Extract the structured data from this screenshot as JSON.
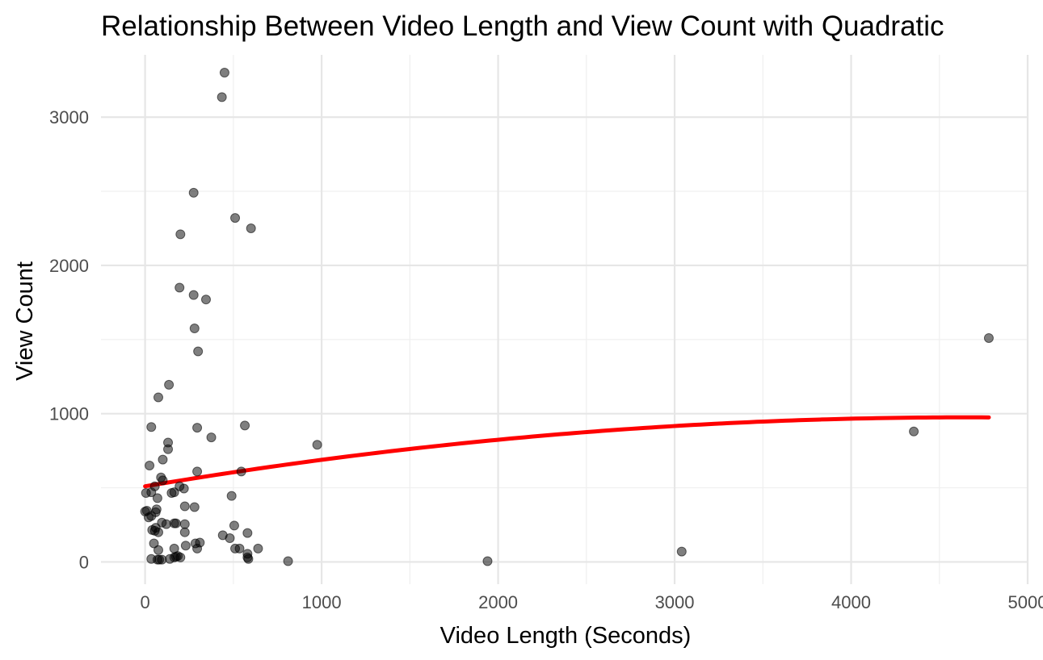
{
  "chart_data": {
    "type": "scatter",
    "title": "Relationship Between Video Length and View Count with Quadratic",
    "xlabel": "Video Length (Seconds)",
    "ylabel": "View Count",
    "xlim": [
      -250,
      5000
    ],
    "ylim": [
      -150,
      3420
    ],
    "x_ticks": [
      0,
      1000,
      2000,
      3000,
      4000,
      5000
    ],
    "y_ticks": [
      0,
      1000,
      2000,
      3000
    ],
    "grid": true,
    "legend": "none",
    "point_color": "#000000",
    "fit_color": "#ff0000",
    "series": [
      {
        "points": [
          [
            450,
            3300
          ],
          [
            435,
            3135
          ],
          [
            275,
            2490
          ],
          [
            510,
            2320
          ],
          [
            600,
            2250
          ],
          [
            200,
            2210
          ],
          [
            195,
            1850
          ],
          [
            275,
            1800
          ],
          [
            345,
            1770
          ],
          [
            280,
            1575
          ],
          [
            300,
            1420
          ],
          [
            4780,
            1510
          ],
          [
            135,
            1195
          ],
          [
            75,
            1110
          ],
          [
            35,
            910
          ],
          [
            295,
            905
          ],
          [
            565,
            920
          ],
          [
            375,
            840
          ],
          [
            130,
            805
          ],
          [
            975,
            790
          ],
          [
            130,
            760
          ],
          [
            100,
            690
          ],
          [
            25,
            650
          ],
          [
            295,
            610
          ],
          [
            545,
            610
          ],
          [
            90,
            570
          ],
          [
            100,
            550
          ],
          [
            55,
            510
          ],
          [
            195,
            510
          ],
          [
            220,
            495
          ],
          [
            5,
            465
          ],
          [
            35,
            470
          ],
          [
            150,
            465
          ],
          [
            165,
            470
          ],
          [
            490,
            445
          ],
          [
            70,
            430
          ],
          [
            225,
            375
          ],
          [
            280,
            370
          ],
          [
            10,
            345
          ],
          [
            65,
            355
          ],
          [
            0,
            340
          ],
          [
            60,
            335
          ],
          [
            20,
            300
          ],
          [
            35,
            310
          ],
          [
            95,
            265
          ],
          [
            120,
            255
          ],
          [
            165,
            260
          ],
          [
            175,
            260
          ],
          [
            225,
            255
          ],
          [
            505,
            245
          ],
          [
            60,
            230
          ],
          [
            40,
            215
          ],
          [
            55,
            210
          ],
          [
            75,
            200
          ],
          [
            225,
            200
          ],
          [
            580,
            195
          ],
          [
            440,
            180
          ],
          [
            480,
            160
          ],
          [
            285,
            125
          ],
          [
            310,
            130
          ],
          [
            50,
            125
          ],
          [
            230,
            110
          ],
          [
            165,
            90
          ],
          [
            295,
            90
          ],
          [
            510,
            90
          ],
          [
            535,
            90
          ],
          [
            640,
            90
          ],
          [
            75,
            80
          ],
          [
            580,
            55
          ],
          [
            580,
            30
          ],
          [
            185,
            40
          ],
          [
            175,
            35
          ],
          [
            165,
            30
          ],
          [
            200,
            30
          ],
          [
            140,
            20
          ],
          [
            35,
            20
          ],
          [
            70,
            15
          ],
          [
            80,
            15
          ],
          [
            95,
            15
          ],
          [
            810,
            5
          ],
          [
            1940,
            5
          ],
          [
            3040,
            70
          ],
          [
            4355,
            880
          ],
          [
            585,
            20
          ]
        ]
      }
    ],
    "fit_curve": {
      "model": "quadratic",
      "x_range": [
        0,
        4780
      ],
      "coefficients": [
        510,
        0.2,
        -2.15e-05
      ]
    }
  }
}
